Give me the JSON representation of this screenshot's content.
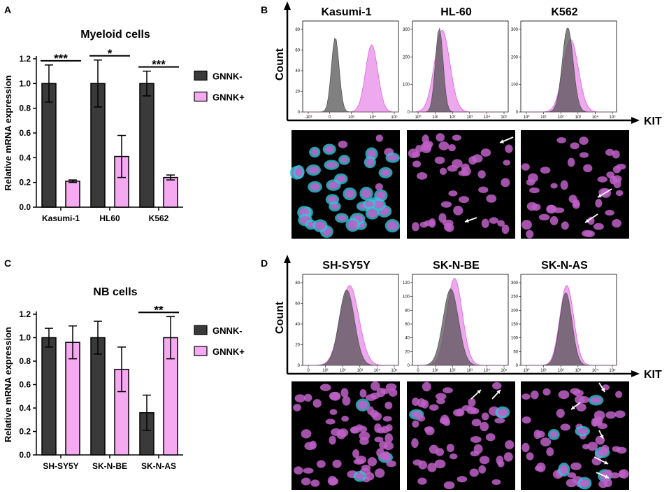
{
  "panels": {
    "A": "A",
    "B": "B",
    "C": "C",
    "D": "D"
  },
  "colors": {
    "gnnk_minus": "#3a3a3a",
    "gnnk_plus": "#f4a9f1",
    "flow_grey": "#555555",
    "flow_pink": "#e060e0",
    "nucleus": "#c060c8",
    "cyan": "#30c8d8"
  },
  "chart_data": [
    {
      "id": "A",
      "type": "bar",
      "title": "Myeloid cells",
      "xlabel": "",
      "ylabel": "Relative mRNA expression",
      "ylim": [
        0,
        1.2
      ],
      "yticks": [
        "0.0",
        "0.2",
        "0.4",
        "0.6",
        "0.8",
        "1.0",
        "1.2"
      ],
      "categories": [
        "Kasumi-1",
        "HL60",
        "K562"
      ],
      "series": [
        {
          "name": "GNNK-",
          "values": [
            1.0,
            1.0,
            1.0
          ],
          "errors": [
            0.15,
            0.19,
            0.1
          ]
        },
        {
          "name": "GNNK+",
          "values": [
            0.21,
            0.41,
            0.24
          ],
          "errors": [
            0.01,
            0.17,
            0.02
          ]
        }
      ],
      "significance": [
        "***",
        "*",
        "***"
      ],
      "legend": [
        "GNNK-",
        "GNNK+"
      ]
    },
    {
      "id": "C",
      "type": "bar",
      "title": "NB cells",
      "xlabel": "",
      "ylabel": "Relative mRNA expression",
      "ylim": [
        0,
        1.2
      ],
      "yticks": [
        "0.0",
        "0.2",
        "0.4",
        "0.6",
        "0.8",
        "1.0",
        "1.2"
      ],
      "categories": [
        "SH-SY5Y",
        "SK-N-BE",
        "SK-N-AS"
      ],
      "series": [
        {
          "name": "GNNK-",
          "values": [
            1.0,
            1.0,
            0.36
          ],
          "errors": [
            0.08,
            0.14,
            0.15
          ]
        },
        {
          "name": "GNNK+",
          "values": [
            0.96,
            0.73,
            1.0
          ],
          "errors": [
            0.14,
            0.19,
            0.18
          ]
        }
      ],
      "significance": [
        "",
        "",
        "**"
      ],
      "legend": [
        "GNNK-",
        "GNNK+"
      ]
    }
  ],
  "flow_B": {
    "count_label": "Count",
    "kit_label": "KIT",
    "plots": [
      {
        "name": "Kasumi-1",
        "yticks": [
          "0",
          "20",
          "40",
          "60",
          "80"
        ],
        "xticks": [
          "-10³",
          "0",
          "10³",
          "10⁴",
          "10⁵"
        ],
        "grey": {
          "center": 0.34,
          "width": 0.025,
          "height": 0.82
        },
        "pink": {
          "center": 0.72,
          "width": 0.04,
          "height": 0.74
        }
      },
      {
        "name": "HL-60",
        "yticks": [
          "0",
          "100",
          "200",
          "300"
        ],
        "xticks": [
          "10⁰",
          "10¹",
          "10²",
          "10³",
          "10⁴",
          "10⁵"
        ],
        "grey": {
          "center": 0.28,
          "width": 0.025,
          "height": 0.92
        },
        "pink": {
          "center": 0.31,
          "width": 0.05,
          "height": 0.9
        }
      },
      {
        "name": "K562",
        "yticks": [
          "0",
          "100",
          "200",
          "300"
        ],
        "xticks": [
          "10⁰",
          "10¹",
          "10²",
          "10³",
          "10⁴",
          "10⁵"
        ],
        "grey": {
          "center": 0.49,
          "width": 0.035,
          "height": 0.93
        },
        "pink": {
          "center": 0.52,
          "width": 0.05,
          "height": 0.8
        }
      }
    ]
  },
  "flow_D": {
    "count_label": "Count",
    "kit_label": "KIT",
    "plots": [
      {
        "name": "SH-SY5Y",
        "yticks": [
          "0",
          "20",
          "40",
          "60",
          "80"
        ],
        "xticks": [
          "0",
          "10¹",
          "10²",
          "10³",
          "10⁴",
          "10⁵"
        ],
        "grey": {
          "center": 0.46,
          "width": 0.05,
          "height": 0.83
        },
        "pink": {
          "center": 0.49,
          "width": 0.06,
          "height": 0.88
        }
      },
      {
        "name": "SK-N-BE",
        "yticks": [
          "0",
          "20",
          "40",
          "60",
          "80",
          "100",
          "120"
        ],
        "xticks": [
          "0",
          "10¹",
          "10²",
          "10³",
          "10⁴",
          "10⁵"
        ],
        "grey": {
          "center": 0.4,
          "width": 0.05,
          "height": 0.84
        },
        "pink": {
          "center": 0.44,
          "width": 0.05,
          "height": 0.96
        }
      },
      {
        "name": "SK-N-AS",
        "yticks": [
          "0",
          "50",
          "100",
          "150",
          "200",
          "250",
          "300"
        ],
        "xticks": [
          "10⁰",
          "10¹",
          "10²",
          "10³",
          "10⁴",
          "10⁵"
        ],
        "grey": {
          "center": 0.47,
          "width": 0.04,
          "height": 0.8
        },
        "pink": {
          "center": 0.48,
          "width": 0.045,
          "height": 0.88
        }
      }
    ]
  }
}
